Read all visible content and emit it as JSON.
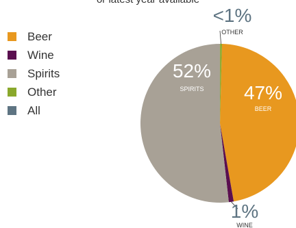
{
  "subtitle": "or latest year available",
  "legend": [
    {
      "label": "Beer",
      "color": "#E8981F"
    },
    {
      "label": "Wine",
      "color": "#5A0F4F"
    },
    {
      "label": "Spirits",
      "color": "#A8A196"
    },
    {
      "label": "Other",
      "color": "#8AA82C"
    },
    {
      "label": "All",
      "color": "#5E7482"
    }
  ],
  "chart_data": {
    "type": "pie",
    "slices": [
      {
        "category": "Beer",
        "value": 47,
        "display": "47%",
        "label": "BEER",
        "color": "#E8981F"
      },
      {
        "category": "Wine",
        "value": 1,
        "display": "1%",
        "label": "WINE",
        "color": "#5A0F4F"
      },
      {
        "category": "Spirits",
        "value": 52,
        "display": "52%",
        "label": "SPIRITS",
        "color": "#A8A196"
      },
      {
        "category": "Other",
        "value": 0.4,
        "display": "<1%",
        "label": "OTHER",
        "color": "#8AA82C"
      }
    ]
  }
}
